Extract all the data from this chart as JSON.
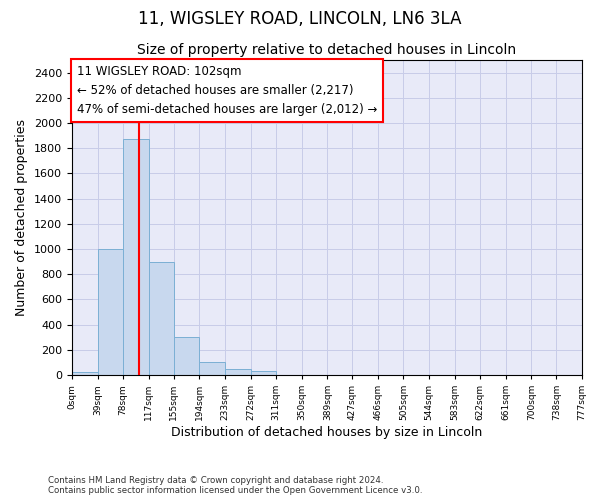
{
  "title": "11, WIGSLEY ROAD, LINCOLN, LN6 3LA",
  "subtitle": "Size of property relative to detached houses in Lincoln",
  "xlabel": "Distribution of detached houses by size in Lincoln",
  "ylabel": "Number of detached properties",
  "bar_left_edges": [
    0,
    39,
    78,
    117,
    155,
    194,
    233,
    272,
    311,
    350,
    389,
    427,
    466,
    505,
    544,
    583,
    622,
    661,
    700,
    738
  ],
  "bar_right_edges": [
    39,
    78,
    117,
    155,
    194,
    233,
    272,
    311,
    350,
    389,
    427,
    466,
    505,
    544,
    583,
    622,
    661,
    700,
    738,
    777
  ],
  "bar_heights": [
    25,
    1000,
    1870,
    900,
    300,
    100,
    50,
    30,
    0,
    0,
    0,
    0,
    0,
    0,
    0,
    0,
    0,
    0,
    0,
    0
  ],
  "bar_color": "#c8d8ee",
  "bar_edge_color": "#7bafd4",
  "property_line_x": 102,
  "property_line_color": "red",
  "annotation_text": "11 WIGSLEY ROAD: 102sqm\n← 52% of detached houses are smaller (2,217)\n47% of semi-detached houses are larger (2,012) →",
  "annotation_box_color": "white",
  "annotation_box_edge_color": "red",
  "ylim": [
    0,
    2500
  ],
  "yticks": [
    0,
    200,
    400,
    600,
    800,
    1000,
    1200,
    1400,
    1600,
    1800,
    2000,
    2200,
    2400
  ],
  "xtick_positions": [
    0,
    39,
    78,
    117,
    155,
    194,
    233,
    272,
    311,
    350,
    389,
    427,
    466,
    505,
    544,
    583,
    622,
    661,
    700,
    738,
    777
  ],
  "xtick_labels": [
    "0sqm",
    "39sqm",
    "78sqm",
    "117sqm",
    "155sqm",
    "194sqm",
    "233sqm",
    "272sqm",
    "311sqm",
    "350sqm",
    "389sqm",
    "427sqm",
    "466sqm",
    "505sqm",
    "544sqm",
    "583sqm",
    "622sqm",
    "661sqm",
    "700sqm",
    "738sqm",
    "777sqm"
  ],
  "grid_color": "#c8cce8",
  "bg_color": "#e8eaf8",
  "footer": "Contains HM Land Registry data © Crown copyright and database right 2024.\nContains public sector information licensed under the Open Government Licence v3.0.",
  "title_fontsize": 12,
  "subtitle_fontsize": 10,
  "xlabel_fontsize": 9,
  "ylabel_fontsize": 9
}
